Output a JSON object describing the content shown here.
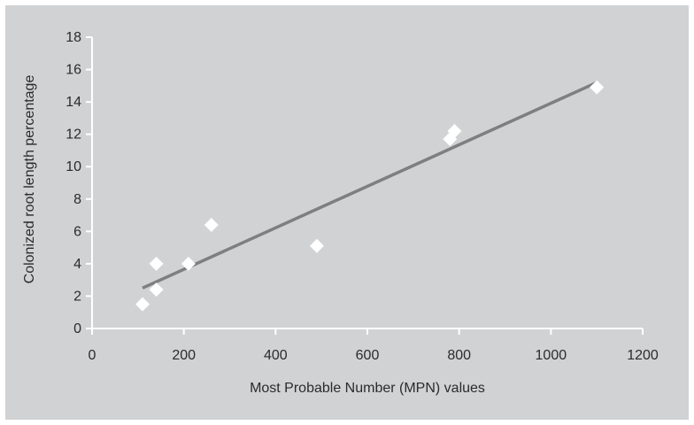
{
  "chart_data": {
    "type": "scatter",
    "title": "",
    "xlabel": "Most Probable Number (MPN) values",
    "ylabel": "Colonized root length percentage",
    "xlim": [
      0,
      1200
    ],
    "ylim": [
      0,
      18
    ],
    "x_ticks": [
      0,
      200,
      400,
      600,
      800,
      1000,
      1200
    ],
    "y_ticks": [
      0,
      2,
      4,
      6,
      8,
      10,
      12,
      14,
      16,
      18
    ],
    "grid": false,
    "legend": "none",
    "series": [
      {
        "points": [
          {
            "x": 110,
            "y": 1.5
          },
          {
            "x": 140,
            "y": 2.4
          },
          {
            "x": 140,
            "y": 4.0
          },
          {
            "x": 210,
            "y": 4.0
          },
          {
            "x": 260,
            "y": 6.4
          },
          {
            "x": 490,
            "y": 5.1
          },
          {
            "x": 780,
            "y": 11.7
          },
          {
            "x": 790,
            "y": 12.2
          },
          {
            "x": 1100,
            "y": 14.9
          }
        ],
        "marker": "diamond",
        "color": "#ffffff"
      }
    ],
    "trendline": {
      "type": "linear",
      "x": [
        110,
        1100
      ],
      "y": [
        2.5,
        15.2
      ],
      "color": "#7f7f7f"
    },
    "colors": {
      "background": "#d1d2d4",
      "axis": "#ffffff",
      "text": "#2b2b2b"
    }
  }
}
